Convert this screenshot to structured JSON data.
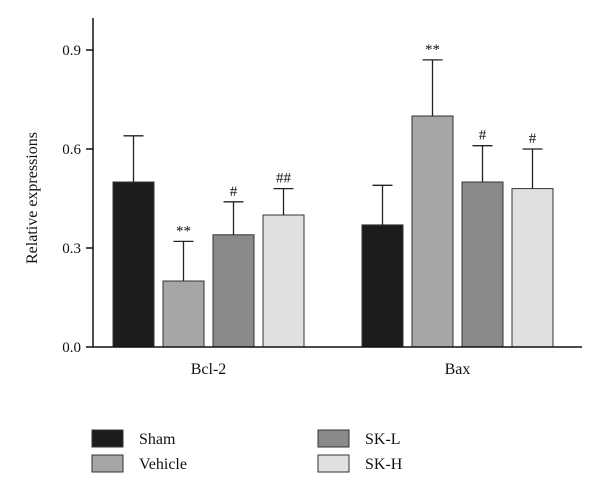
{
  "chart_data": {
    "type": "bar",
    "title": "",
    "xlabel": "",
    "ylabel": "Relative expressions",
    "ylim": [
      0,
      1.0
    ],
    "yticks": [
      "0.0",
      "0.3",
      "0.6",
      "0.9"
    ],
    "categories": [
      "Bcl-2",
      "Bax"
    ],
    "series": [
      {
        "name": "Sham",
        "color": "#1c1c1c",
        "values": [
          0.5,
          0.37
        ],
        "errors": [
          0.14,
          0.12
        ],
        "annotations": [
          "",
          ""
        ]
      },
      {
        "name": "Vehicle",
        "color": "#a6a6a6",
        "values": [
          0.2,
          0.7
        ],
        "errors": [
          0.12,
          0.17
        ],
        "annotations": [
          "**",
          "**"
        ]
      },
      {
        "name": "SK-L",
        "color": "#8a8a8a",
        "values": [
          0.34,
          0.5
        ],
        "errors": [
          0.1,
          0.11
        ],
        "annotations": [
          "#",
          "#"
        ]
      },
      {
        "name": "SK-H",
        "color": "#e0e0e0",
        "values": [
          0.4,
          0.48
        ],
        "errors": [
          0.08,
          0.12
        ],
        "annotations": [
          "##",
          "#"
        ]
      }
    ],
    "error_bars": "upper",
    "grid": false,
    "legend_position": "bottom"
  }
}
